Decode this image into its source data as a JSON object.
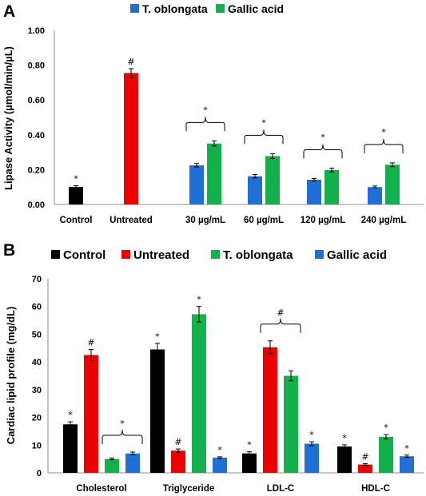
{
  "chart_data": [
    {
      "panel_label": "A",
      "type": "bar",
      "ylabel": "Lipase Activity (µmol/min/µL)",
      "ylim": [
        0,
        1.0
      ],
      "yticks": [
        "0.00",
        "0.20",
        "0.40",
        "0.60",
        "0.80",
        "1.00"
      ],
      "categories": [
        "Control",
        "Untreated",
        "30 µg/mL",
        "60 µg/mL",
        "120 µg/mL",
        "240 µg/mL"
      ],
      "legend_position": "top",
      "legend": [
        {
          "name": "T. oblongata",
          "color": "#1f6fd6"
        },
        {
          "name": "Gallic acid",
          "color": "#13b04b"
        }
      ],
      "bars": [
        {
          "category": "Control",
          "value": 0.1,
          "error": 0.008,
          "color": "#000000",
          "mark": "*"
        },
        {
          "category": "Untreated",
          "value": 0.755,
          "error": 0.025,
          "color": "#ee0000",
          "mark": "#"
        },
        {
          "category": "30 µg/mL",
          "value": 0.225,
          "error": 0.01,
          "color": "#1f6fd6",
          "mark": ""
        },
        {
          "category": "30 µg/mL",
          "value": 0.35,
          "error": 0.015,
          "color": "#13b04b",
          "mark": ""
        },
        {
          "category": "60 µg/mL",
          "value": 0.162,
          "error": 0.01,
          "color": "#1f6fd6",
          "mark": ""
        },
        {
          "category": "60 µg/mL",
          "value": 0.278,
          "error": 0.014,
          "color": "#13b04b",
          "mark": ""
        },
        {
          "category": "120 µg/mL",
          "value": 0.142,
          "error": 0.007,
          "color": "#1f6fd6",
          "mark": ""
        },
        {
          "category": "120 µg/mL",
          "value": 0.198,
          "error": 0.011,
          "color": "#13b04b",
          "mark": ""
        },
        {
          "category": "240 µg/mL",
          "value": 0.1,
          "error": 0.006,
          "color": "#1f6fd6",
          "mark": ""
        },
        {
          "category": "240 µg/mL",
          "value": 0.228,
          "error": 0.011,
          "color": "#13b04b",
          "mark": ""
        }
      ],
      "group_marks": [
        {
          "category": "30 µg/mL",
          "mark": "*"
        },
        {
          "category": "60 µg/mL",
          "mark": "*"
        },
        {
          "category": "120 µg/mL",
          "mark": "*"
        },
        {
          "category": "240 µg/mL",
          "mark": "*"
        }
      ]
    },
    {
      "panel_label": "B",
      "type": "bar",
      "ylabel": "Cardiac lipid profile (mg/dL)",
      "ylim": [
        0,
        70
      ],
      "yticks": [
        "0",
        "10",
        "20",
        "30",
        "40",
        "50",
        "60",
        "70"
      ],
      "categories": [
        "Cholesterol",
        "Triglyceride",
        "LDL-C",
        "HDL-C"
      ],
      "legend_position": "top",
      "series": [
        {
          "name": "Control",
          "color": "#000000",
          "values": [
            17.5,
            44.5,
            7,
            9.5
          ],
          "errors": [
            0.9,
            2.2,
            0.6,
            0.6
          ],
          "marks": [
            "*",
            "*",
            "*",
            "*"
          ]
        },
        {
          "name": "Untreated",
          "color": "#ee0000",
          "values": [
            42.5,
            8,
            45.3,
            3
          ],
          "errors": [
            2,
            0.6,
            2.3,
            0.3
          ],
          "marks": [
            "#",
            "#",
            "",
            "#"
          ]
        },
        {
          "name": "T. oblongata",
          "color": "#13b04b",
          "values": [
            5,
            57.2,
            35,
            13
          ],
          "errors": [
            0.3,
            2.8,
            1.8,
            0.8
          ],
          "marks": [
            "",
            "*",
            "",
            "*"
          ]
        },
        {
          "name": "Gallic acid",
          "color": "#1f6fd6",
          "values": [
            7,
            5.5,
            10.5,
            6
          ],
          "errors": [
            0.5,
            0.3,
            0.7,
            0.4
          ],
          "marks": [
            "",
            "*",
            "*",
            "*"
          ]
        }
      ],
      "group_marks": [
        {
          "category": "Cholesterol",
          "series": [
            "T. oblongata",
            "Gallic acid"
          ],
          "mark": "*"
        },
        {
          "category": "LDL-C",
          "series": [
            "Untreated",
            "T. oblongata"
          ],
          "mark": "#"
        }
      ]
    }
  ]
}
